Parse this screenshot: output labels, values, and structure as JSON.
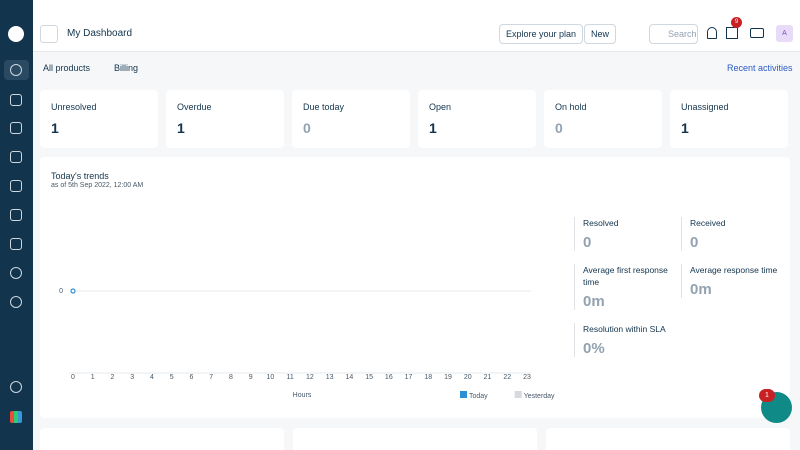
{
  "header": {
    "title": "My Dashboard",
    "explore": "Explore your plan",
    "new": "New",
    "search": "Search",
    "gift_badge": "9",
    "avatar": "A"
  },
  "filters": {
    "products": "All products",
    "group": "Billing",
    "recent": "Recent activities"
  },
  "cards": [
    {
      "label": "Unresolved",
      "value": 1
    },
    {
      "label": "Overdue",
      "value": 1
    },
    {
      "label": "Due today",
      "value": 0
    },
    {
      "label": "Open",
      "value": 1
    },
    {
      "label": "On hold",
      "value": 0
    },
    {
      "label": "Unassigned",
      "value": 1
    }
  ],
  "chart_data": {
    "type": "line",
    "title": "Today's trends",
    "subtitle": "as of 5th Sep 2022, 12:00 AM",
    "x_label": "Hours",
    "categories": [
      "0",
      "1",
      "2",
      "3",
      "4",
      "5",
      "6",
      "7",
      "8",
      "9",
      "10",
      "11",
      "12",
      "13",
      "14",
      "15",
      "16",
      "17",
      "18",
      "19",
      "20",
      "21",
      "22",
      "23"
    ],
    "series": [
      {
        "name": "Today",
        "color": "#2c8fd6",
        "values": [
          0,
          null,
          null,
          null,
          null,
          null,
          null,
          null,
          null,
          null,
          null,
          null,
          null,
          null,
          null,
          null,
          null,
          null,
          null,
          null,
          null,
          null,
          null,
          null
        ]
      },
      {
        "name": "Yesterday",
        "color": "#d6dadf",
        "values": [
          null,
          null,
          null,
          null,
          null,
          null,
          null,
          null,
          null,
          null,
          null,
          null,
          null,
          null,
          null,
          null,
          null,
          null,
          null,
          null,
          null,
          null,
          null,
          null
        ]
      }
    ],
    "ylim": [
      -1,
      1
    ],
    "yticks": [
      0
    ],
    "grid": true
  },
  "stats": [
    {
      "label": "Resolved",
      "value": "0"
    },
    {
      "label": "Received",
      "value": "0"
    },
    {
      "label": "Average first response time",
      "value": "0m"
    },
    {
      "label": "Average response time",
      "value": "0m"
    },
    {
      "label": "Resolution within SLA",
      "value": "0%"
    }
  ],
  "widget_badge": "1"
}
